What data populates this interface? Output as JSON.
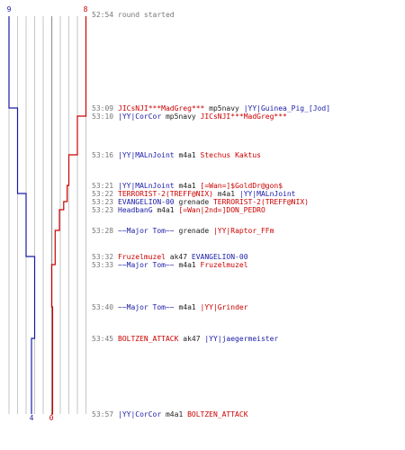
{
  "graph": {
    "top_labels": {
      "left": "9",
      "right": "8"
    },
    "bottom_labels": {
      "left": "4",
      "right": "0"
    },
    "colors": {
      "blue": "#1a1aa6",
      "red": "#cc0000",
      "grid": "#b8b8b8"
    }
  },
  "log": [
    {
      "time": "52:54",
      "parts": [
        {
          "t": "round started",
          "c": "gray"
        }
      ]
    },
    {
      "time": "53:09",
      "parts": [
        {
          "t": "JICsNJI***MadGreg***",
          "c": "red"
        },
        {
          "t": " mp5navy ",
          "c": "dark"
        },
        {
          "t": "|YY|Guinea_Pig_[Jod]",
          "c": "blue"
        }
      ]
    },
    {
      "time": "53:10",
      "parts": [
        {
          "t": "|YY|CorCor",
          "c": "blue"
        },
        {
          "t": " mp5navy ",
          "c": "dark"
        },
        {
          "t": "JICsNJI***MadGreg***",
          "c": "red"
        }
      ]
    },
    {
      "time": "53:16",
      "parts": [
        {
          "t": "|YY|MALnJoint",
          "c": "blue"
        },
        {
          "t": " m4a1 ",
          "c": "dark"
        },
        {
          "t": "Stechus Kaktus",
          "c": "red"
        }
      ]
    },
    {
      "time": "53:21",
      "parts": [
        {
          "t": "|YY|MALnJoint",
          "c": "blue"
        },
        {
          "t": " m4a1 ",
          "c": "dark"
        },
        {
          "t": "[=Wan=]$GoldDr@gon$",
          "c": "red"
        }
      ]
    },
    {
      "time": "53:22",
      "parts": [
        {
          "t": "TERRORIST-2(TREFF@NIX)",
          "c": "red"
        },
        {
          "t": " m4a1 ",
          "c": "dark"
        },
        {
          "t": "|YY|MALnJoint",
          "c": "blue"
        }
      ]
    },
    {
      "time": "53:23",
      "parts": [
        {
          "t": "EVANGELION-00",
          "c": "blue"
        },
        {
          "t": " grenade ",
          "c": "dark"
        },
        {
          "t": "TERRORIST-2(TREFF@NIX)",
          "c": "red"
        }
      ]
    },
    {
      "time": "53:23",
      "parts": [
        {
          "t": "HeadbanG",
          "c": "blue"
        },
        {
          "t": " m4a1 ",
          "c": "dark"
        },
        {
          "t": "[=Wan|2nd=]DON_PEDRO",
          "c": "red"
        }
      ]
    },
    {
      "time": "53:28",
      "parts": [
        {
          "t": "~~Major Tom~~",
          "c": "blue"
        },
        {
          "t": " grenade ",
          "c": "dark"
        },
        {
          "t": "|YY|Raptor_FFm",
          "c": "red"
        }
      ]
    },
    {
      "time": "53:32",
      "parts": [
        {
          "t": "Fruzelmuzel",
          "c": "red"
        },
        {
          "t": " ak47 ",
          "c": "dark"
        },
        {
          "t": "EVANGELION-00",
          "c": "blue"
        }
      ]
    },
    {
      "time": "53:33",
      "parts": [
        {
          "t": "~~Major Tom~~",
          "c": "blue"
        },
        {
          "t": " m4a1 ",
          "c": "dark"
        },
        {
          "t": "Fruzelmuzel",
          "c": "red"
        }
      ]
    },
    {
      "time": "53:40",
      "parts": [
        {
          "t": "~~Major Tom~~",
          "c": "blue"
        },
        {
          "t": " m4a1 ",
          "c": "dark"
        },
        {
          "t": "|YY|Grinder",
          "c": "red"
        }
      ]
    },
    {
      "time": "53:45",
      "parts": [
        {
          "t": "BOLTZEN_ATTACK",
          "c": "red"
        },
        {
          "t": " ak47 ",
          "c": "dark"
        },
        {
          "t": "|YY|jaegermeister",
          "c": "blue"
        }
      ]
    },
    {
      "time": "53:57",
      "parts": [
        {
          "t": "|YY|CorCor",
          "c": "blue"
        },
        {
          "t": " m4a1 ",
          "c": "dark"
        },
        {
          "t": "BOLTZEN_ATTACK",
          "c": "red"
        }
      ]
    }
  ]
}
